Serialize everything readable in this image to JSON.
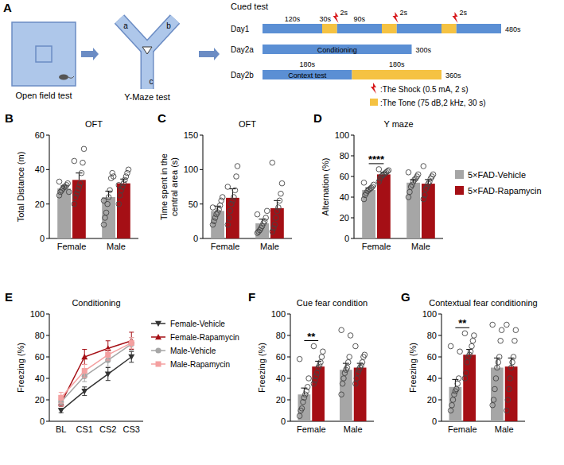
{
  "panel_a": {
    "panel_label": "A",
    "open_field": "Open field test",
    "y_maze": "Y-Maze test",
    "arms": [
      "a",
      "b",
      "c"
    ],
    "cued_test": {
      "title": "Cued test",
      "day1": {
        "label": "Day1",
        "durations": [
          "120s",
          "30s",
          "90s"
        ],
        "shock_labels": [
          "2s",
          "2s",
          "2s"
        ],
        "total": "480s"
      },
      "day2a": {
        "label": "Day2a",
        "name": "Conditioning",
        "total": "300s"
      },
      "day2b": {
        "label": "Day2b",
        "durations": [
          "180s",
          "180s"
        ],
        "name": "Context test",
        "total": "360s"
      },
      "legend": {
        "shock": ":The Shock (0.5 mA, 2 s)",
        "tone": ":The Tone (75 dB,2 kHz, 30 s)"
      }
    }
  },
  "chart_data": [
    {
      "type": "bar",
      "panel_label": "B",
      "title": "OFT",
      "y_label": "Total Distance (m)",
      "categories": [
        "Female",
        "Male"
      ],
      "ylim": [
        0,
        60
      ],
      "yticks": [
        0,
        20,
        40,
        60
      ],
      "series": [
        {
          "color": "#a6a6a6",
          "values": [
            29,
            24
          ],
          "errors": [
            1.5,
            3.5
          ],
          "points": [
            [
              25,
              27,
              28,
              29,
              30,
              30,
              31,
              32,
              27,
              33
            ],
            [
              8,
              12,
              15,
              20,
              24,
              28,
              35,
              38,
              36,
              22
            ]
          ]
        },
        {
          "color": "#a50f15",
          "values": [
            34,
            32
          ],
          "errors": [
            4,
            2.5
          ],
          "points": [
            [
              20,
              24,
              26,
              28,
              30,
              32,
              38,
              44,
              52,
              45
            ],
            [
              20,
              25,
              28,
              30,
              32,
              34,
              36,
              38,
              40,
              31
            ]
          ]
        }
      ]
    },
    {
      "type": "bar",
      "panel_label": "C",
      "title": "OFT",
      "y_label": "Time spent in the central area (s)",
      "categories": [
        "Female",
        "Male"
      ],
      "ylim": [
        0,
        150
      ],
      "yticks": [
        0,
        50,
        100,
        150
      ],
      "series": [
        {
          "color": "#a6a6a6",
          "values": [
            40,
            22
          ],
          "errors": [
            7,
            6
          ],
          "points": [
            [
              20,
              25,
              30,
              35,
              38,
              42,
              48,
              55,
              60,
              45
            ],
            [
              8,
              10,
              12,
              15,
              18,
              22,
              25,
              30,
              40,
              35
            ]
          ]
        },
        {
          "color": "#a50f15",
          "values": [
            59,
            44
          ],
          "errors": [
            13,
            11
          ],
          "points": [
            [
              20,
              30,
              40,
              50,
              55,
              60,
              70,
              90,
              105,
              75
            ],
            [
              10,
              15,
              20,
              30,
              40,
              45,
              55,
              65,
              80,
              110
            ]
          ]
        }
      ]
    },
    {
      "type": "bar",
      "panel_label": "D",
      "title": "Y maze",
      "y_label": "Alternation (%)",
      "categories": [
        "Female",
        "Male"
      ],
      "ylim": [
        0,
        100
      ],
      "yticks": [
        0,
        20,
        40,
        60,
        80,
        100
      ],
      "legend": "right",
      "significance": [
        {
          "category": "Female",
          "label": "****"
        }
      ],
      "series": [
        {
          "name": "5×FAD-Vehicle",
          "color": "#a6a6a6",
          "values": [
            47,
            54
          ],
          "errors": [
            2,
            3
          ],
          "points": [
            [
              38,
              42,
              44,
              46,
              47,
              48,
              49,
              50,
              52,
              54
            ],
            [
              40,
              45,
              50,
              52,
              55,
              57,
              58,
              60,
              62,
              64
            ]
          ]
        },
        {
          "name": "5×FAD-Rapamycin",
          "color": "#a50f15",
          "values": [
            62,
            53
          ],
          "errors": [
            2,
            4
          ],
          "points": [
            [
              55,
              58,
              60,
              61,
              62,
              63,
              64,
              65,
              66,
              67
            ],
            [
              38,
              42,
              48,
              50,
              53,
              55,
              58,
              60,
              62,
              70
            ]
          ]
        }
      ]
    },
    {
      "type": "line",
      "panel_label": "E",
      "title": "Conditioning",
      "y_label": "Freezing (%)",
      "categories": [
        "BL",
        "CS1",
        "CS2",
        "CS3"
      ],
      "ylim": [
        0,
        100
      ],
      "yticks": [
        0,
        20,
        40,
        60,
        80,
        100
      ],
      "legend": "right",
      "series": [
        {
          "name": "Female-Vehicle",
          "color": "#333333",
          "marker": "triangle-down",
          "line_style": "solid",
          "values": [
            10,
            28,
            44,
            60
          ],
          "errors": [
            2,
            4,
            6,
            5
          ]
        },
        {
          "name": "Female-Rapamycin",
          "color": "#a50f15",
          "marker": "triangle-up",
          "line_style": "solid",
          "values": [
            17,
            60,
            68,
            75
          ],
          "errors": [
            3,
            7,
            7,
            8
          ]
        },
        {
          "name": "Male-Vehicle",
          "color": "#a6a6a6",
          "marker": "circle",
          "line_style": "solid",
          "values": [
            18,
            42,
            57,
            72
          ],
          "errors": [
            3,
            5,
            6,
            6
          ]
        },
        {
          "name": "Male-Rapamycin",
          "color": "#f4a0a0",
          "marker": "square",
          "line_style": "solid",
          "values": [
            22,
            47,
            62,
            73
          ],
          "errors": [
            5,
            6,
            5,
            5
          ]
        }
      ]
    },
    {
      "type": "bar",
      "panel_label": "F",
      "title": "Cue fear condition",
      "y_label": "Freezing (%)",
      "categories": [
        "Female",
        "Male"
      ],
      "ylim": [
        0,
        100
      ],
      "yticks": [
        0,
        20,
        40,
        60,
        80,
        100
      ],
      "significance": [
        {
          "category": "Female",
          "label": "**"
        }
      ],
      "series": [
        {
          "color": "#a6a6a6",
          "values": [
            25,
            48
          ],
          "errors": [
            6,
            6
          ],
          "points": [
            [
              5,
              10,
              12,
              18,
              22,
              25,
              28,
              32,
              40,
              58
            ],
            [
              25,
              35,
              40,
              45,
              48,
              50,
              55,
              60,
              80,
              85
            ]
          ]
        },
        {
          "color": "#a50f15",
          "values": [
            51,
            50
          ],
          "errors": [
            5,
            4
          ],
          "points": [
            [
              35,
              38,
              42,
              45,
              50,
              52,
              55,
              60,
              65,
              70
            ],
            [
              35,
              40,
              45,
              48,
              50,
              52,
              55,
              60,
              62,
              70
            ]
          ]
        }
      ]
    },
    {
      "type": "bar",
      "panel_label": "G",
      "title": "Contextual fear conditioning",
      "y_label": "Freezing (%)",
      "categories": [
        "Female",
        "Male"
      ],
      "ylim": [
        0,
        100
      ],
      "yticks": [
        0,
        20,
        40,
        60,
        80,
        100
      ],
      "significance": [
        {
          "category": "Female",
          "label": "**"
        }
      ],
      "series": [
        {
          "color": "#a6a6a6",
          "values": [
            32,
            50
          ],
          "errors": [
            7,
            9
          ],
          "points": [
            [
              10,
              15,
              20,
              25,
              28,
              30,
              35,
              40,
              65,
              70
            ],
            [
              15,
              20,
              30,
              40,
              50,
              55,
              60,
              75,
              85,
              90
            ]
          ]
        },
        {
          "color": "#a50f15",
          "values": [
            62,
            51
          ],
          "errors": [
            5,
            8
          ],
          "points": [
            [
              40,
              45,
              55,
              60,
              62,
              65,
              70,
              75,
              80,
              82
            ],
            [
              10,
              20,
              30,
              40,
              50,
              55,
              60,
              75,
              85,
              90
            ]
          ]
        }
      ]
    }
  ]
}
